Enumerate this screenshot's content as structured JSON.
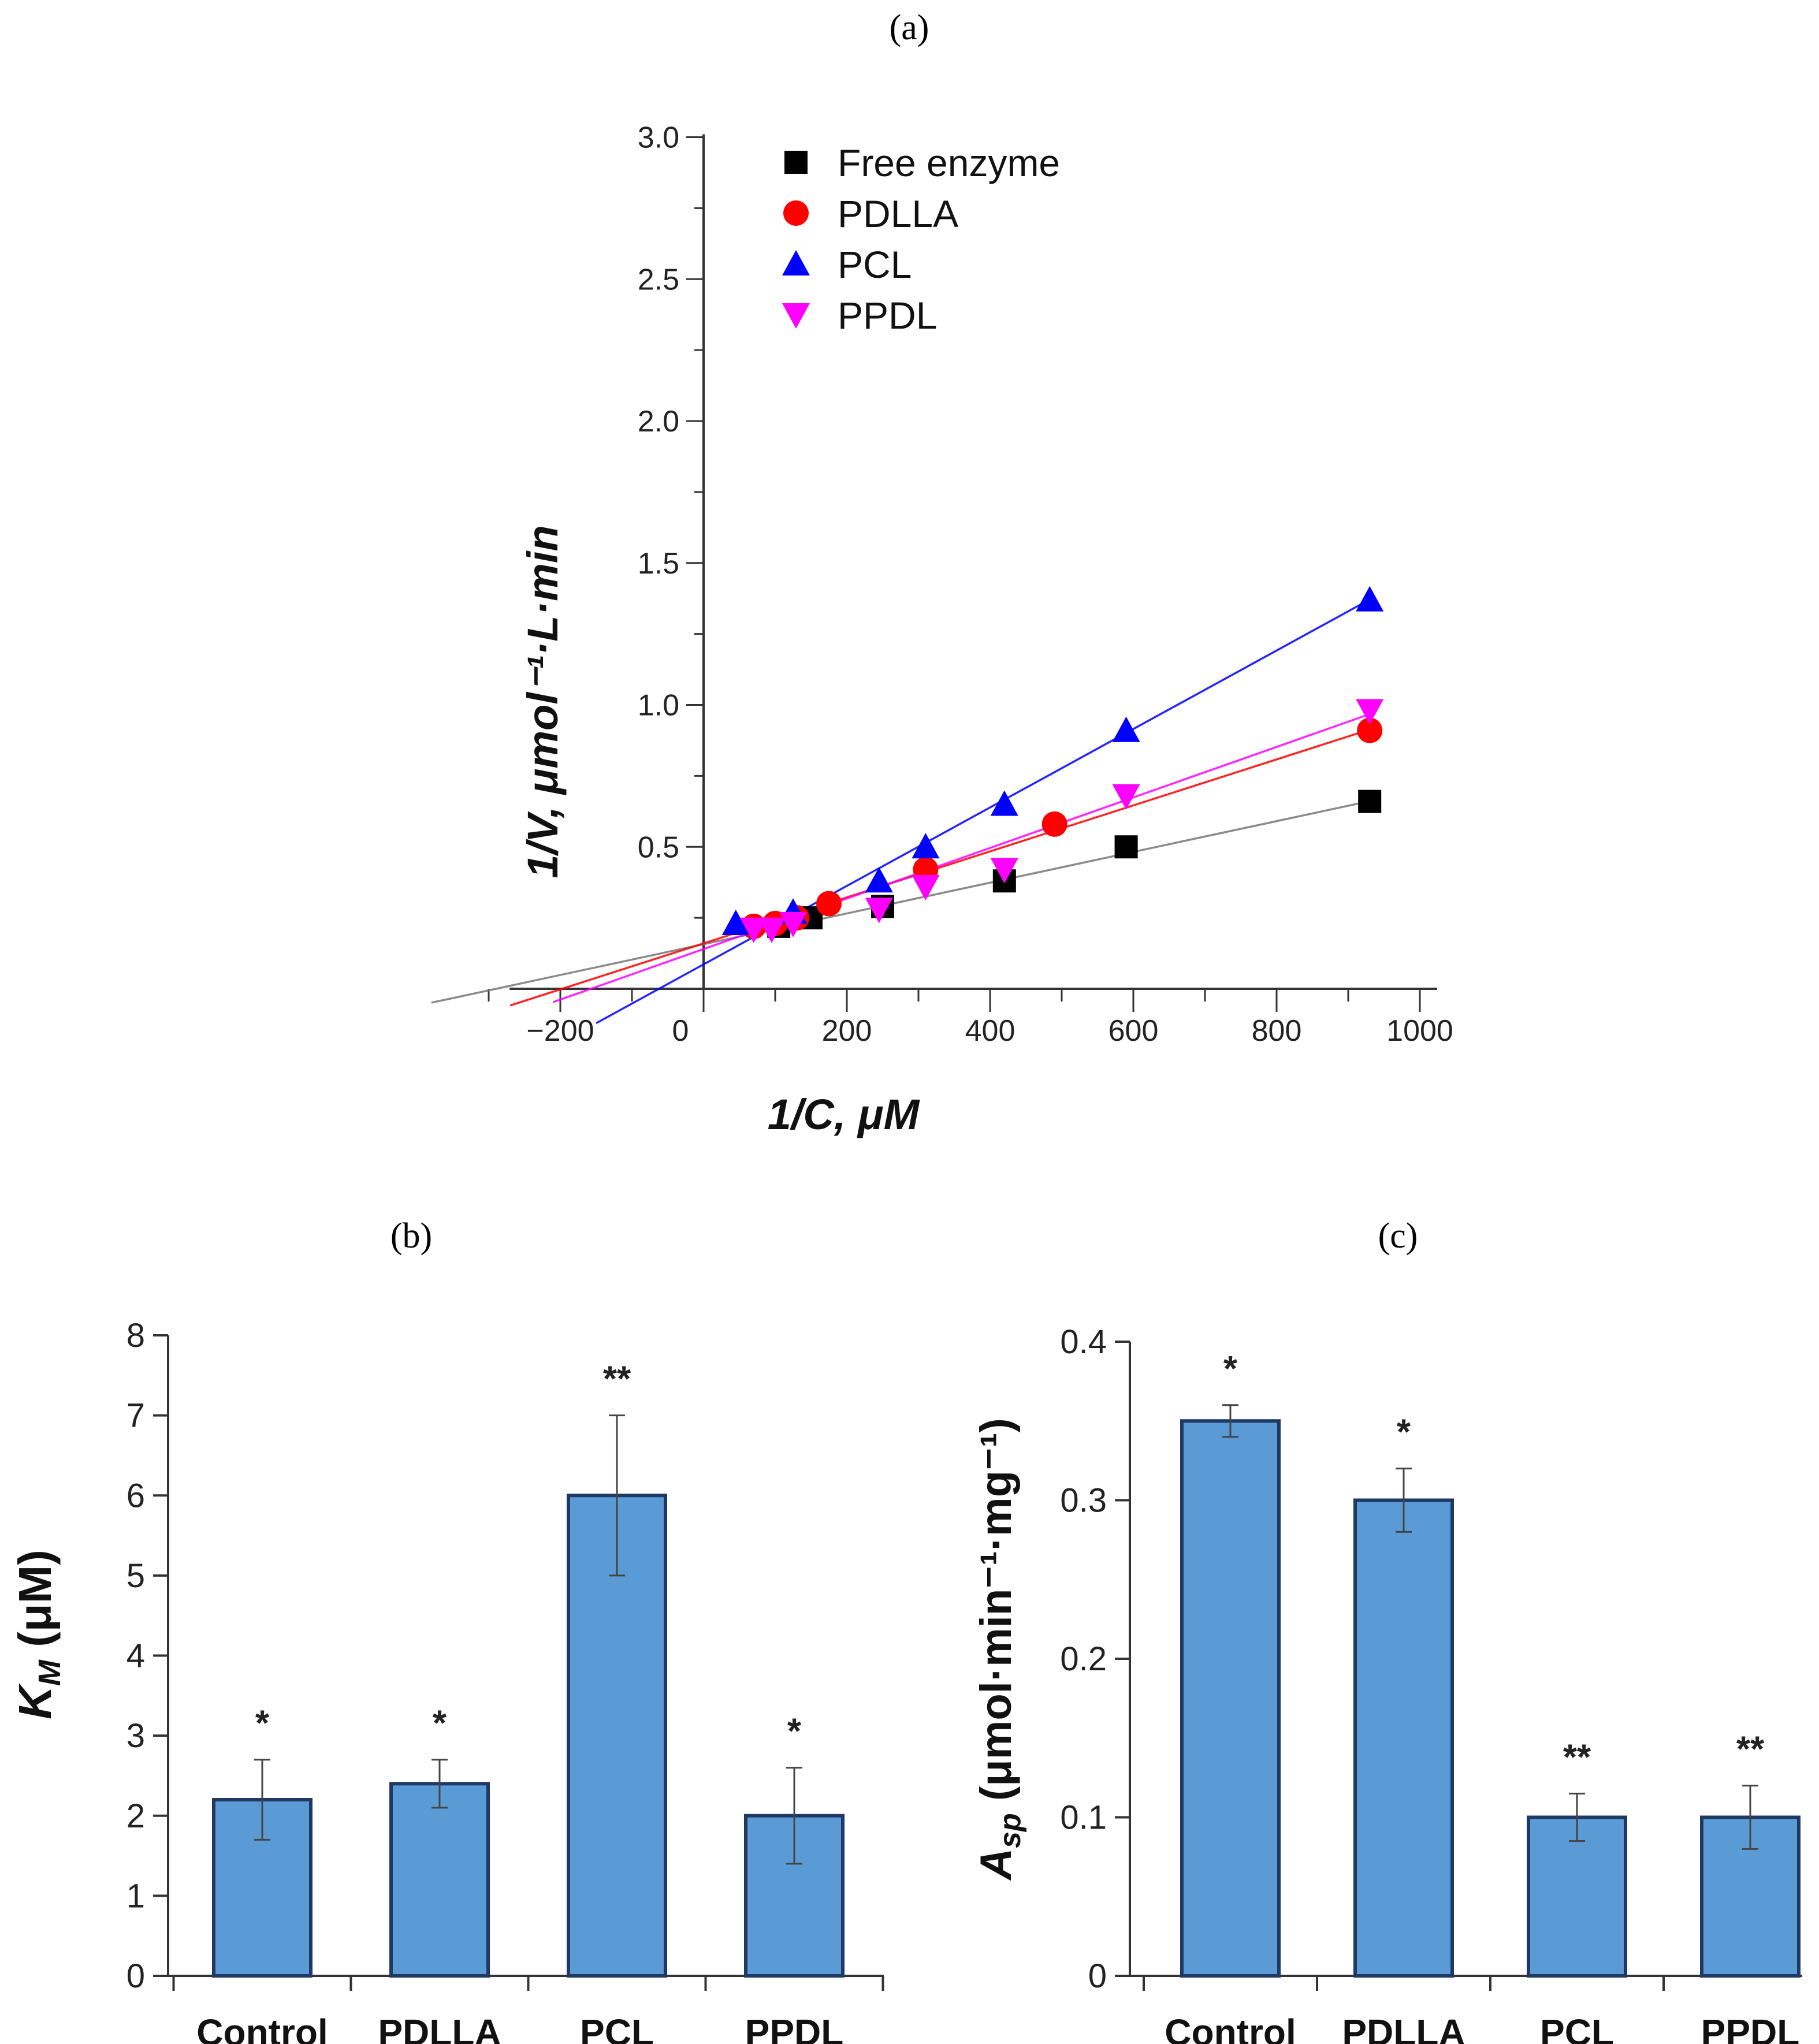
{
  "chart_data": [
    {
      "panel": "(a)",
      "type": "scatter",
      "xlabel": "1/C, μM",
      "ylabel": "1/V, μmol⁻¹·L·min",
      "xlim": [
        -400,
        1000
      ],
      "ylim": [
        0,
        3.0
      ],
      "x_ticks": [
        -200,
        0,
        200,
        400,
        600,
        800,
        1000
      ],
      "y_ticks": [
        0.5,
        1.0,
        1.5,
        2.0,
        2.5,
        3.0
      ],
      "legend_position": "top-center",
      "series": [
        {
          "name": "Free enzyme",
          "marker": "square",
          "color": "#000000",
          "x": [
            105,
            150,
            250,
            420,
            590,
            930
          ],
          "y": [
            0.22,
            0.25,
            0.29,
            0.38,
            0.5,
            0.66
          ],
          "fit": {
            "slope": 0.000542,
            "intercept": 0.157,
            "x_range": [
              -380,
              930
            ]
          }
        },
        {
          "name": "PDLLA",
          "marker": "circle",
          "color": "#ff0000",
          "x": [
            70,
            100,
            130,
            175,
            310,
            490,
            930
          ],
          "y": [
            0.22,
            0.23,
            0.25,
            0.3,
            0.42,
            0.58,
            0.91
          ],
          "fit": {
            "slope": 0.00081,
            "intercept": 0.16,
            "x_range": [
              -270,
              930
            ]
          }
        },
        {
          "name": "PCL",
          "marker": "triangle-up",
          "color": "#0000ff",
          "x": [
            45,
            125,
            245,
            310,
            420,
            590,
            930
          ],
          "y": [
            0.23,
            0.27,
            0.38,
            0.5,
            0.65,
            0.91,
            1.37
          ],
          "fit": {
            "slope": 0.001382,
            "intercept": 0.086,
            "x_range": [
              -150,
              930
            ]
          }
        },
        {
          "name": "PPDL",
          "marker": "triangle-down",
          "color": "#ff00ff",
          "x": [
            70,
            95,
            125,
            245,
            310,
            420,
            590,
            930
          ],
          "y": [
            0.21,
            0.21,
            0.23,
            0.28,
            0.36,
            0.42,
            0.68,
            0.98
          ],
          "fit": {
            "slope": 0.00089,
            "intercept": 0.14,
            "x_range": [
              -210,
              930
            ]
          }
        }
      ]
    },
    {
      "panel": "(b)",
      "type": "bar",
      "categories": [
        "Control",
        "PDLLA",
        "PCL",
        "PPDL"
      ],
      "values": [
        2.2,
        2.4,
        6.0,
        2.0
      ],
      "errors": [
        0.5,
        0.3,
        1.0,
        0.6
      ],
      "significance": [
        "*",
        "*",
        "**",
        "*"
      ],
      "ylabel_main": "K",
      "ylabel_sub": "M",
      "ylabel_unit": " (μM)",
      "ylim": [
        0,
        8
      ],
      "y_ticks": [
        "0",
        "1",
        "2",
        "3",
        "4",
        "5",
        "6",
        "7",
        "8"
      ],
      "bar_color": "#5b9bd5"
    },
    {
      "panel": "(c)",
      "type": "bar",
      "categories": [
        "Control",
        "PDLLA",
        "PCL",
        "PPDL"
      ],
      "values": [
        0.35,
        0.3,
        0.1,
        0.1
      ],
      "errors": [
        0.01,
        0.02,
        0.015,
        0.02
      ],
      "significance": [
        "*",
        "*",
        "**",
        "**"
      ],
      "ylabel_main": "A",
      "ylabel_sub": "sp",
      "ylabel_unit": " (μmol·min⁻¹·mg⁻¹)",
      "ylim": [
        0,
        0.4
      ],
      "y_ticks": [
        "0",
        "0.1",
        "0.2",
        "0.3",
        "0.4"
      ],
      "bar_color": "#5b9bd5"
    }
  ]
}
